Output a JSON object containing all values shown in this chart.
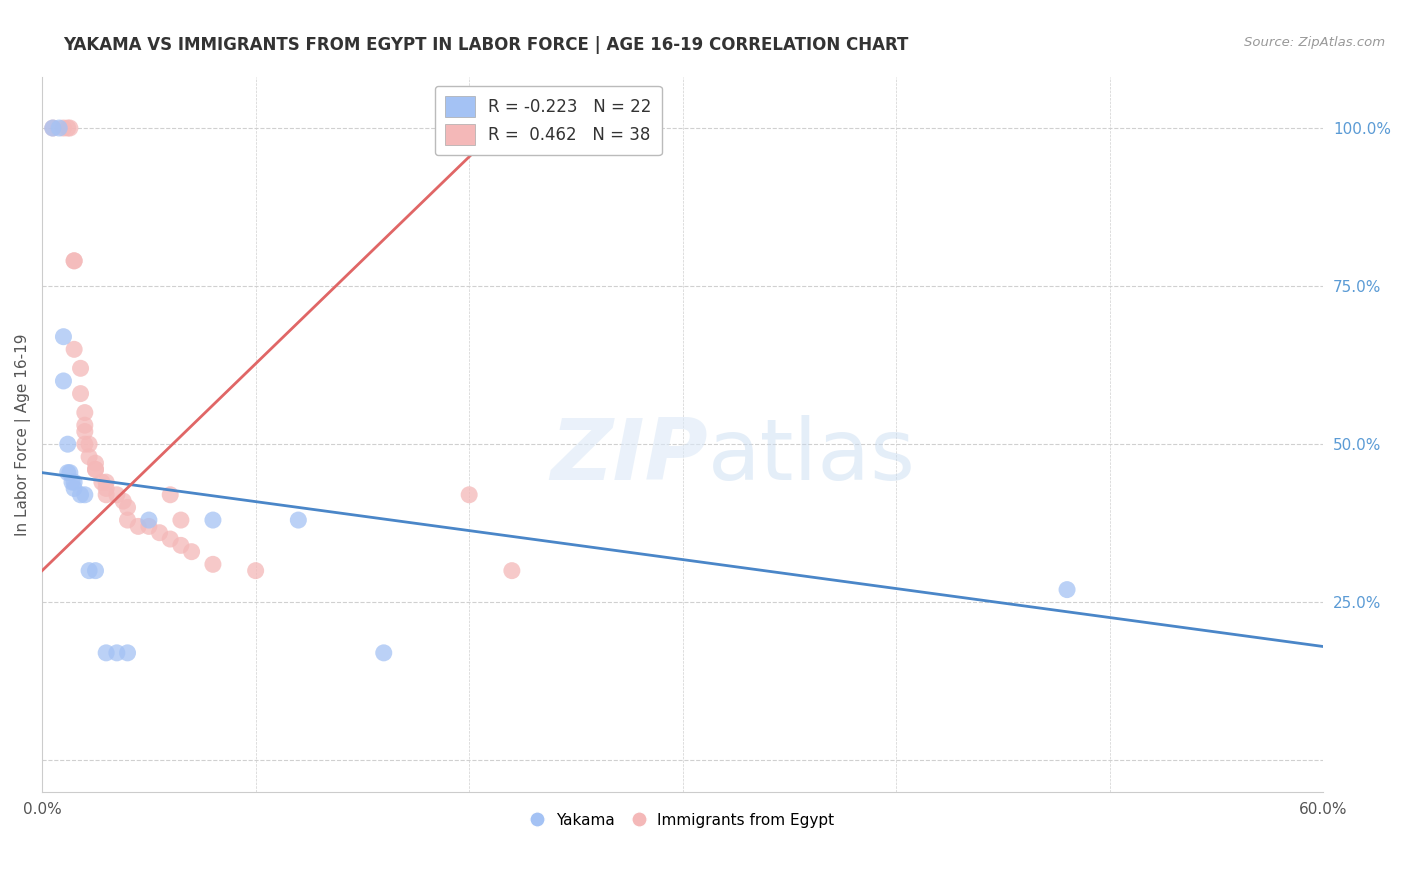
{
  "title": "YAKAMA VS IMMIGRANTS FROM EGYPT IN LABOR FORCE | AGE 16-19 CORRELATION CHART",
  "source": "Source: ZipAtlas.com",
  "ylabel": "In Labor Force | Age 16-19",
  "ylabel_right_ticks": [
    0.0,
    0.25,
    0.5,
    0.75,
    1.0
  ],
  "ylabel_right_labels": [
    "",
    "25.0%",
    "50.0%",
    "75.0%",
    "100.0%"
  ],
  "xmin": 0.0,
  "xmax": 0.6,
  "ymin": -0.05,
  "ymax": 1.08,
  "blue_R": -0.223,
  "blue_N": 22,
  "pink_R": 0.462,
  "pink_N": 38,
  "blue_color": "#a4c2f4",
  "pink_color": "#f4b8b8",
  "blue_line_color": "#4a86c8",
  "pink_line_color": "#e06666",
  "legend_label_blue": "Yakama",
  "legend_label_pink": "Immigrants from Egypt",
  "blue_line_x": [
    0.0,
    0.6
  ],
  "blue_line_y": [
    0.455,
    0.18
  ],
  "pink_line_x": [
    0.0,
    0.22
  ],
  "pink_line_y": [
    0.3,
    1.02
  ],
  "blue_scatter_x": [
    0.005,
    0.008,
    0.01,
    0.01,
    0.012,
    0.012,
    0.013,
    0.014,
    0.015,
    0.015,
    0.018,
    0.02,
    0.022,
    0.025,
    0.03,
    0.035,
    0.04,
    0.05,
    0.08,
    0.12,
    0.16,
    0.48
  ],
  "blue_scatter_y": [
    1.0,
    1.0,
    0.67,
    0.6,
    0.5,
    0.455,
    0.455,
    0.44,
    0.44,
    0.43,
    0.42,
    0.42,
    0.3,
    0.3,
    0.17,
    0.17,
    0.17,
    0.38,
    0.38,
    0.38,
    0.17,
    0.27
  ],
  "pink_scatter_x": [
    0.005,
    0.01,
    0.012,
    0.013,
    0.015,
    0.015,
    0.015,
    0.018,
    0.018,
    0.02,
    0.02,
    0.02,
    0.02,
    0.022,
    0.022,
    0.025,
    0.025,
    0.025,
    0.028,
    0.03,
    0.03,
    0.03,
    0.035,
    0.038,
    0.04,
    0.04,
    0.045,
    0.05,
    0.055,
    0.06,
    0.065,
    0.07,
    0.08,
    0.1,
    0.2,
    0.22,
    0.06,
    0.065
  ],
  "pink_scatter_y": [
    1.0,
    1.0,
    1.0,
    1.0,
    0.79,
    0.79,
    0.65,
    0.62,
    0.58,
    0.55,
    0.53,
    0.52,
    0.5,
    0.5,
    0.48,
    0.47,
    0.46,
    0.46,
    0.44,
    0.44,
    0.43,
    0.42,
    0.42,
    0.41,
    0.4,
    0.38,
    0.37,
    0.37,
    0.36,
    0.35,
    0.34,
    0.33,
    0.31,
    0.3,
    0.42,
    0.3,
    0.42,
    0.38
  ],
  "grid_color": "#d0d0d0",
  "right_tick_color": "#5b9bd5",
  "bg_color": "#ffffff",
  "title_fontsize": 12,
  "axis_fontsize": 11,
  "right_label_color": "#5b9bd5"
}
